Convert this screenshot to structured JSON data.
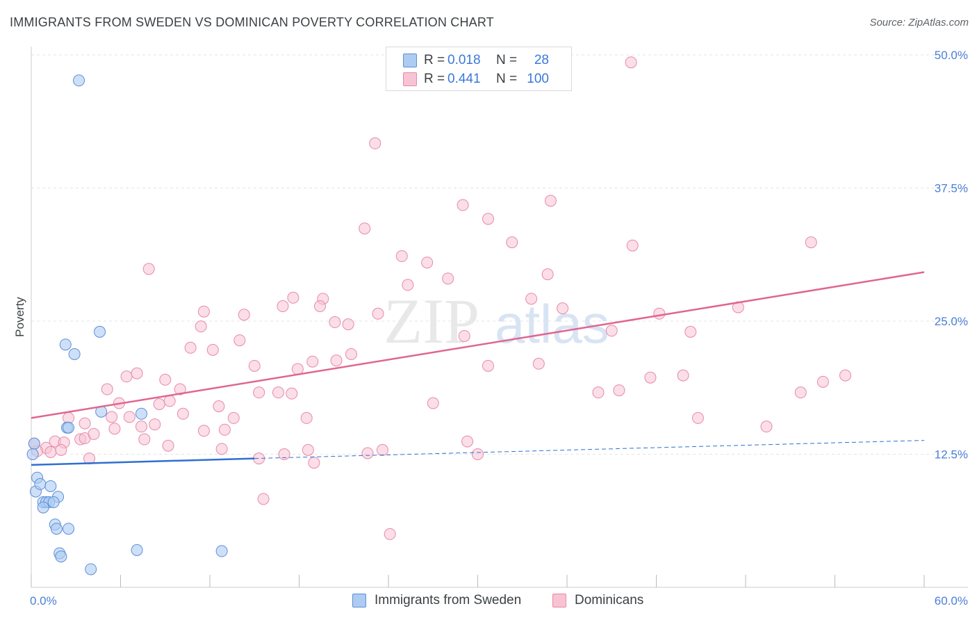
{
  "title": "IMMIGRANTS FROM SWEDEN VS DOMINICAN POVERTY CORRELATION CHART",
  "source": "Source: ZipAtlas.com",
  "watermark": {
    "zip": "ZIP",
    "atlas": "atlas"
  },
  "legend": {
    "rows": [
      {
        "r_label": "R =",
        "r_value": "0.018",
        "n_label": "N =",
        "n_value": "28"
      },
      {
        "r_label": "R =",
        "r_value": "0.441",
        "n_label": "N =",
        "n_value": "100"
      }
    ]
  },
  "bottom_legend": {
    "sweden": "Immigrants from Sweden",
    "dominicans": "Dominicans"
  },
  "colors": {
    "sweden_fill": "#aecbf2",
    "sweden_stroke": "#5b8fd9",
    "sweden_line": "#2f6fcf",
    "dominican_fill": "#f8c3d3",
    "dominican_stroke": "#e68aa8",
    "dominican_line": "#e0668f",
    "tick_label": "#4a7fd6",
    "grid": "#e3e3e3"
  },
  "chart_data": {
    "type": "scatter",
    "title": "IMMIGRANTS FROM SWEDEN VS DOMINICAN POVERTY CORRELATION CHART",
    "xlabel": "",
    "ylabel": "Poverty",
    "xlim": [
      0,
      60
    ],
    "ylim": [
      0,
      50
    ],
    "x_tick_labels": [
      "0.0%",
      "60.0%"
    ],
    "y_ticks": [
      12.5,
      25.0,
      37.5,
      50.0
    ],
    "y_tick_labels": [
      "12.5%",
      "25.0%",
      "37.5%",
      "50.0%"
    ],
    "grid": true,
    "legend_position": "top-center",
    "series": [
      {
        "name": "Immigrants from Sweden",
        "R": 0.018,
        "N": 28,
        "trend": {
          "x": [
            0,
            15
          ],
          "y": [
            11.5,
            12.1
          ],
          "dashed_extension_to": [
            60,
            13.8
          ]
        },
        "points": [
          [
            3.2,
            47.6
          ],
          [
            4.6,
            24.0
          ],
          [
            2.3,
            22.8
          ],
          [
            2.9,
            21.9
          ],
          [
            4.7,
            16.5
          ],
          [
            7.4,
            16.3
          ],
          [
            2.4,
            15.0
          ],
          [
            2.5,
            15.0
          ],
          [
            0.2,
            13.5
          ],
          [
            0.4,
            10.3
          ],
          [
            0.3,
            9.0
          ],
          [
            0.6,
            9.7
          ],
          [
            1.3,
            9.5
          ],
          [
            1.8,
            8.5
          ],
          [
            0.8,
            8.0
          ],
          [
            1.0,
            8.0
          ],
          [
            1.2,
            8.0
          ],
          [
            1.5,
            8.0
          ],
          [
            0.8,
            7.5
          ],
          [
            1.6,
            5.9
          ],
          [
            1.7,
            5.5
          ],
          [
            2.5,
            5.5
          ],
          [
            1.9,
            3.2
          ],
          [
            2.0,
            2.9
          ],
          [
            7.1,
            3.5
          ],
          [
            12.8,
            3.4
          ],
          [
            4.0,
            1.7
          ],
          [
            0.1,
            12.5
          ]
        ]
      },
      {
        "name": "Dominicans",
        "R": 0.441,
        "N": 100,
        "trend": {
          "x": [
            0,
            60
          ],
          "y": [
            15.9,
            29.6
          ]
        },
        "points": [
          [
            40.3,
            49.3
          ],
          [
            23.1,
            41.7
          ],
          [
            29.0,
            35.9
          ],
          [
            34.9,
            36.3
          ],
          [
            22.4,
            33.7
          ],
          [
            30.7,
            34.6
          ],
          [
            32.3,
            32.4
          ],
          [
            40.4,
            32.1
          ],
          [
            52.4,
            32.4
          ],
          [
            24.9,
            31.1
          ],
          [
            26.6,
            30.5
          ],
          [
            7.9,
            29.9
          ],
          [
            34.7,
            29.4
          ],
          [
            28.0,
            29.0
          ],
          [
            25.3,
            28.4
          ],
          [
            17.6,
            27.2
          ],
          [
            19.6,
            27.1
          ],
          [
            33.6,
            27.1
          ],
          [
            16.9,
            26.4
          ],
          [
            19.4,
            26.4
          ],
          [
            35.7,
            26.2
          ],
          [
            11.6,
            25.9
          ],
          [
            14.3,
            25.6
          ],
          [
            23.3,
            25.7
          ],
          [
            42.2,
            25.7
          ],
          [
            47.5,
            26.3
          ],
          [
            20.4,
            24.9
          ],
          [
            21.3,
            24.7
          ],
          [
            11.4,
            24.5
          ],
          [
            29.1,
            23.6
          ],
          [
            39.0,
            24.1
          ],
          [
            44.3,
            24.0
          ],
          [
            14.0,
            23.2
          ],
          [
            10.7,
            22.5
          ],
          [
            12.2,
            22.3
          ],
          [
            21.5,
            21.9
          ],
          [
            20.5,
            21.3
          ],
          [
            18.9,
            21.2
          ],
          [
            15.0,
            20.8
          ],
          [
            34.1,
            21.0
          ],
          [
            30.7,
            20.8
          ],
          [
            17.9,
            20.5
          ],
          [
            7.1,
            20.1
          ],
          [
            6.4,
            19.8
          ],
          [
            9.0,
            19.5
          ],
          [
            41.6,
            19.7
          ],
          [
            43.8,
            19.9
          ],
          [
            54.7,
            19.9
          ],
          [
            5.1,
            18.6
          ],
          [
            10.0,
            18.6
          ],
          [
            15.3,
            18.3
          ],
          [
            16.6,
            18.3
          ],
          [
            17.5,
            18.2
          ],
          [
            39.5,
            18.5
          ],
          [
            38.1,
            18.3
          ],
          [
            51.7,
            18.3
          ],
          [
            53.2,
            19.3
          ],
          [
            5.9,
            17.3
          ],
          [
            8.6,
            17.2
          ],
          [
            9.3,
            17.5
          ],
          [
            12.6,
            17.0
          ],
          [
            27.0,
            17.3
          ],
          [
            5.4,
            16.0
          ],
          [
            6.6,
            16.0
          ],
          [
            10.2,
            16.3
          ],
          [
            13.6,
            15.9
          ],
          [
            18.5,
            15.9
          ],
          [
            44.8,
            15.9
          ],
          [
            2.5,
            15.9
          ],
          [
            3.6,
            15.4
          ],
          [
            8.3,
            15.3
          ],
          [
            7.4,
            15.1
          ],
          [
            5.6,
            14.9
          ],
          [
            11.6,
            14.7
          ],
          [
            13.0,
            14.8
          ],
          [
            49.4,
            15.1
          ],
          [
            1.6,
            13.7
          ],
          [
            2.2,
            13.6
          ],
          [
            3.3,
            13.9
          ],
          [
            3.6,
            14.0
          ],
          [
            7.6,
            13.9
          ],
          [
            4.2,
            14.4
          ],
          [
            9.2,
            13.3
          ],
          [
            12.8,
            13.0
          ],
          [
            29.3,
            13.7
          ],
          [
            1.0,
            13.1
          ],
          [
            1.3,
            12.7
          ],
          [
            2.0,
            12.9
          ],
          [
            0.4,
            12.8
          ],
          [
            0.2,
            13.5
          ],
          [
            18.6,
            12.9
          ],
          [
            17.0,
            12.5
          ],
          [
            23.6,
            12.9
          ],
          [
            22.6,
            12.6
          ],
          [
            30.0,
            12.5
          ],
          [
            3.9,
            12.1
          ],
          [
            15.3,
            12.1
          ],
          [
            19.0,
            11.7
          ],
          [
            15.6,
            8.3
          ],
          [
            24.1,
            5.0
          ]
        ]
      }
    ]
  }
}
